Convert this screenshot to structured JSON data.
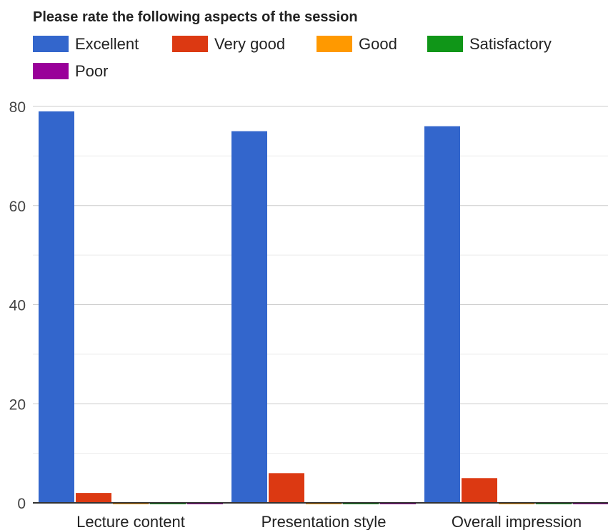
{
  "chart_data": {
    "type": "bar",
    "title": "Please rate the following aspects of the session",
    "xlabel": "",
    "ylabel": "",
    "categories": [
      "Lecture content",
      "Presentation style",
      "Overall impression"
    ],
    "ylim": [
      0,
      80
    ],
    "yticks": [
      0,
      20,
      40,
      60,
      80
    ],
    "grid": true,
    "legend_position": "top",
    "series": [
      {
        "name": "Excellent",
        "color": "#3366cc",
        "values": [
          79,
          75,
          76
        ]
      },
      {
        "name": "Very good",
        "color": "#dc3912",
        "values": [
          2,
          6,
          5
        ]
      },
      {
        "name": "Good",
        "color": "#ff9900",
        "values": [
          0,
          0,
          0
        ]
      },
      {
        "name": "Satisfactory",
        "color": "#109618",
        "values": [
          0,
          0,
          0
        ]
      },
      {
        "name": "Poor",
        "color": "#990099",
        "values": [
          0,
          0,
          0
        ]
      }
    ]
  }
}
